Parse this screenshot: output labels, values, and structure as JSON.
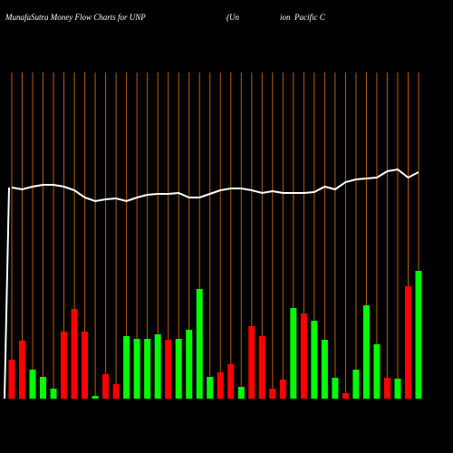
{
  "chart_data": {
    "type": "bar",
    "title": "MunafaSutra  Money Flow  Charts for UNP",
    "subtitle": "(Un                    ion  Pacific C",
    "categories": [
      null,
      null,
      null,
      null,
      null,
      null,
      null,
      null,
      null,
      null,
      null,
      null,
      null,
      null,
      null,
      null,
      null,
      null,
      null,
      null,
      null,
      null,
      null,
      null,
      null,
      null,
      null,
      null,
      null,
      null,
      null,
      null,
      null,
      null,
      null,
      null,
      null,
      null,
      null,
      null
    ],
    "values": [
      43,
      64,
      32,
      24,
      11,
      74,
      99,
      74,
      3,
      27,
      16,
      69,
      66,
      66,
      71,
      65,
      66,
      76,
      121,
      24,
      29,
      38,
      13,
      80,
      69,
      11,
      21,
      100,
      94,
      86,
      65,
      23,
      6,
      32,
      103,
      60,
      23,
      22,
      124,
      141
    ],
    "colors": [
      "#ff0000",
      "#ff0000",
      "#00ff00",
      "#00ff00",
      "#00ff00",
      "#ff0000",
      "#ff0000",
      "#ff0000",
      "#00ff00",
      "#ff0000",
      "#ff0000",
      "#00ff00",
      "#00ff00",
      "#00ff00",
      "#00ff00",
      "#ff0000",
      "#00ff00",
      "#00ff00",
      "#00ff00",
      "#00ff00",
      "#ff0000",
      "#ff0000",
      "#00ff00",
      "#ff0000",
      "#ff0000",
      "#ff0000",
      "#ff0000",
      "#00ff00",
      "#ff0000",
      "#00ff00",
      "#00ff00",
      "#00ff00",
      "#ff0000",
      "#00ff00",
      "#00ff00",
      "#00ff00",
      "#ff0000",
      "#00ff00",
      "#ff0000",
      "#00ff00"
    ],
    "line": {
      "color": "#ffffff",
      "values": [
        233,
        231,
        234,
        236,
        236,
        234,
        230,
        222,
        218,
        220,
        221,
        218,
        222,
        225,
        226,
        226,
        227,
        222,
        222,
        226,
        230,
        232,
        232,
        230,
        227,
        229,
        227,
        227,
        227,
        228,
        234,
        231,
        239,
        242,
        243,
        244,
        251,
        253,
        244,
        250
      ]
    },
    "grid_color": "#b8600c",
    "ylim": [
      0,
      440
    ]
  }
}
